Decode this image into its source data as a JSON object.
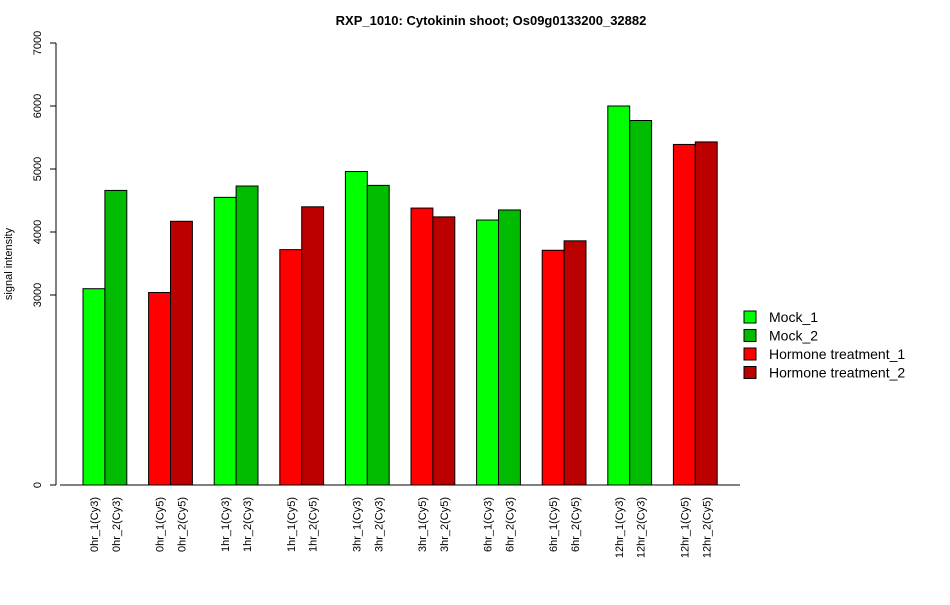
{
  "chart_data": {
    "type": "bar",
    "title": "RXP_1010: Cytokinin shoot; Os09g0133200_32882",
    "xlabel": "",
    "ylabel": "signal intensity",
    "y_ticks": [
      0,
      3000,
      4000,
      5000,
      6000,
      7000
    ],
    "y_tick_labels": [
      "0",
      "3000",
      "4000",
      "5000",
      "6000",
      "7000"
    ],
    "grid": false,
    "legend_position": "right",
    "legend": [
      {
        "label": "Mock_1",
        "color": "#00ff00"
      },
      {
        "label": "Mock_2",
        "color": "#00bb00"
      },
      {
        "label": "Hormone treatment_1",
        "color": "#ff0000"
      },
      {
        "label": "Hormone treatment_2",
        "color": "#bb0000"
      }
    ],
    "categories": [
      "0hr_1(Cy3)",
      "0hr_2(Cy3)",
      "0hr_1(Cy5)",
      "0hr_2(Cy5)",
      "1hr_1(Cy3)",
      "1hr_2(Cy3)",
      "1hr_1(Cy5)",
      "1hr_2(Cy5)",
      "3hr_1(Cy3)",
      "3hr_2(Cy3)",
      "3hr_1(Cy5)",
      "3hr_2(Cy5)",
      "6hr_1(Cy3)",
      "6hr_2(Cy3)",
      "6hr_1(Cy5)",
      "6hr_2(Cy5)",
      "12hr_1(Cy3)",
      "12hr_2(Cy3)",
      "12hr_1(Cy5)",
      "12hr_2(Cy5)"
    ],
    "values": [
      3100,
      4660,
      3040,
      4170,
      4550,
      4730,
      3720,
      4400,
      4960,
      4740,
      4380,
      4240,
      4190,
      4350,
      3710,
      3860,
      6000,
      5770,
      5390,
      5430
    ],
    "bar_series": [
      "Mock_1",
      "Mock_2",
      "Hormone treatment_1",
      "Hormone treatment_2",
      "Mock_1",
      "Mock_2",
      "Hormone treatment_1",
      "Hormone treatment_2",
      "Mock_1",
      "Mock_2",
      "Hormone treatment_1",
      "Hormone treatment_2",
      "Mock_1",
      "Mock_2",
      "Hormone treatment_1",
      "Hormone treatment_2",
      "Mock_1",
      "Mock_2",
      "Hormone treatment_1",
      "Hormone treatment_2"
    ]
  }
}
